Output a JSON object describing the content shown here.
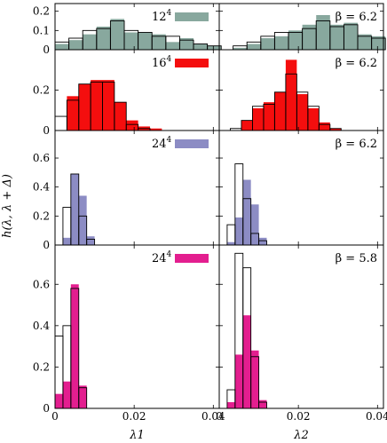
{
  "chart_data": {
    "type": "bar",
    "layout": "4 rows x 2 columns of histograms",
    "ylabel": "h(λ, λ + Δ)",
    "columns": [
      {
        "xlabel": "λ1",
        "xlim": [
          0,
          0.0415
        ],
        "xticks": [
          0,
          0.02,
          0.04
        ],
        "xtick_labels": [
          "0",
          "0.02",
          "0.04"
        ]
      },
      {
        "xlabel": "λ2",
        "xlim": [
          0,
          0.0415
        ],
        "xticks": [
          0,
          0.02,
          0.04
        ],
        "xtick_labels": [
          "0",
          "0.02",
          "0.04"
        ]
      }
    ],
    "rows": [
      {
        "label": "12",
        "label_exp": "4",
        "beta": "β = 6.2",
        "color": "#88a89e",
        "ylim": [
          0,
          0.24
        ],
        "yticks": [
          0,
          0.1,
          0.2
        ],
        "ytick_labels": [
          "0",
          "0.1",
          "0.2"
        ]
      },
      {
        "label": "16",
        "label_exp": "4",
        "beta": "β = 6.2",
        "color": "#f40e0e",
        "ylim": [
          0,
          0.4
        ],
        "yticks": [
          0,
          0.2
        ],
        "ytick_labels": [
          "0",
          "0.2"
        ]
      },
      {
        "label": "24",
        "label_exp": "4",
        "beta": "β = 6.2",
        "color": "#8c8cc4",
        "ylim": [
          0,
          0.79
        ],
        "yticks": [
          0,
          0.2,
          0.4,
          0.6
        ],
        "ytick_labels": [
          "0",
          "0.2",
          "0.4",
          "0.6"
        ]
      },
      {
        "label": "24",
        "label_exp": "4",
        "beta": "β = 5.8",
        "color": "#e31e8f",
        "ylim": [
          0,
          0.79
        ],
        "yticks": [
          0,
          0.2,
          0.4,
          0.6
        ],
        "ytick_labels": [
          "0",
          "0.2",
          "0.4",
          "0.6"
        ]
      }
    ],
    "panels": [
      {
        "row": 0,
        "col": 0,
        "bin_width": 0.0035,
        "bins": [
          [
            0.0,
            0.03,
            0.04
          ],
          [
            0.0035,
            0.05,
            0.06
          ],
          [
            0.007,
            0.08,
            0.1
          ],
          [
            0.0105,
            0.12,
            0.11
          ],
          [
            0.014,
            0.16,
            0.15
          ],
          [
            0.0175,
            0.09,
            0.1
          ],
          [
            0.021,
            0.09,
            0.09
          ],
          [
            0.0245,
            0.08,
            0.07
          ],
          [
            0.028,
            0.04,
            0.07
          ],
          [
            0.0315,
            0.06,
            0.05
          ],
          [
            0.035,
            0.03,
            0.03
          ],
          [
            0.0385,
            0.02,
            0.02
          ]
        ]
      },
      {
        "row": 0,
        "col": 1,
        "bin_width": 0.0035,
        "bins": [
          [
            0.0035,
            0.01,
            0.02
          ],
          [
            0.007,
            0.03,
            0.04
          ],
          [
            0.0105,
            0.06,
            0.07
          ],
          [
            0.014,
            0.07,
            0.09
          ],
          [
            0.0175,
            0.1,
            0.09
          ],
          [
            0.021,
            0.13,
            0.11
          ],
          [
            0.0245,
            0.18,
            0.15
          ],
          [
            0.028,
            0.13,
            0.12
          ],
          [
            0.0315,
            0.14,
            0.13
          ],
          [
            0.035,
            0.08,
            0.07
          ],
          [
            0.0385,
            0.07,
            0.06
          ]
        ]
      },
      {
        "row": 1,
        "col": 0,
        "bin_width": 0.003,
        "bins": [
          [
            0.0,
            0.0,
            0.07
          ],
          [
            0.003,
            0.17,
            0.15
          ],
          [
            0.006,
            0.23,
            0.23
          ],
          [
            0.009,
            0.25,
            0.24
          ],
          [
            0.012,
            0.25,
            0.24
          ],
          [
            0.015,
            0.14,
            0.14
          ],
          [
            0.018,
            0.05,
            0.03
          ],
          [
            0.021,
            0.02,
            0.01
          ],
          [
            0.024,
            0.01,
            0.0
          ]
        ]
      },
      {
        "row": 1,
        "col": 1,
        "bin_width": 0.0028,
        "bins": [
          [
            0.0028,
            0.0,
            0.01
          ],
          [
            0.0056,
            0.05,
            0.05
          ],
          [
            0.0084,
            0.11,
            0.12
          ],
          [
            0.0112,
            0.14,
            0.13
          ],
          [
            0.014,
            0.19,
            0.19
          ],
          [
            0.0168,
            0.35,
            0.28
          ],
          [
            0.0196,
            0.18,
            0.19
          ],
          [
            0.0224,
            0.11,
            0.12
          ],
          [
            0.0252,
            0.04,
            0.03
          ],
          [
            0.028,
            0.01,
            0.01
          ]
        ]
      },
      {
        "row": 2,
        "col": 0,
        "bin_width": 0.002,
        "bins": [
          [
            0.002,
            0.05,
            0.26
          ],
          [
            0.004,
            0.49,
            0.49
          ],
          [
            0.006,
            0.34,
            0.2
          ],
          [
            0.008,
            0.06,
            0.04
          ]
        ]
      },
      {
        "row": 2,
        "col": 1,
        "bin_width": 0.002,
        "bins": [
          [
            0.002,
            0.02,
            0.14
          ],
          [
            0.004,
            0.19,
            0.56
          ],
          [
            0.006,
            0.45,
            0.32
          ],
          [
            0.008,
            0.28,
            0.08
          ],
          [
            0.01,
            0.05,
            0.03
          ]
        ]
      },
      {
        "row": 3,
        "col": 0,
        "bin_width": 0.002,
        "bins": [
          [
            0.0,
            0.07,
            0.35
          ],
          [
            0.002,
            0.13,
            0.4
          ],
          [
            0.004,
            0.6,
            0.58
          ],
          [
            0.006,
            0.11,
            0.1
          ]
        ]
      },
      {
        "row": 3,
        "col": 1,
        "bin_width": 0.002,
        "bins": [
          [
            0.002,
            0.03,
            0.09
          ],
          [
            0.004,
            0.26,
            0.75
          ],
          [
            0.006,
            0.45,
            0.68
          ],
          [
            0.008,
            0.28,
            0.25
          ],
          [
            0.01,
            0.04,
            0.03
          ]
        ]
      }
    ]
  }
}
